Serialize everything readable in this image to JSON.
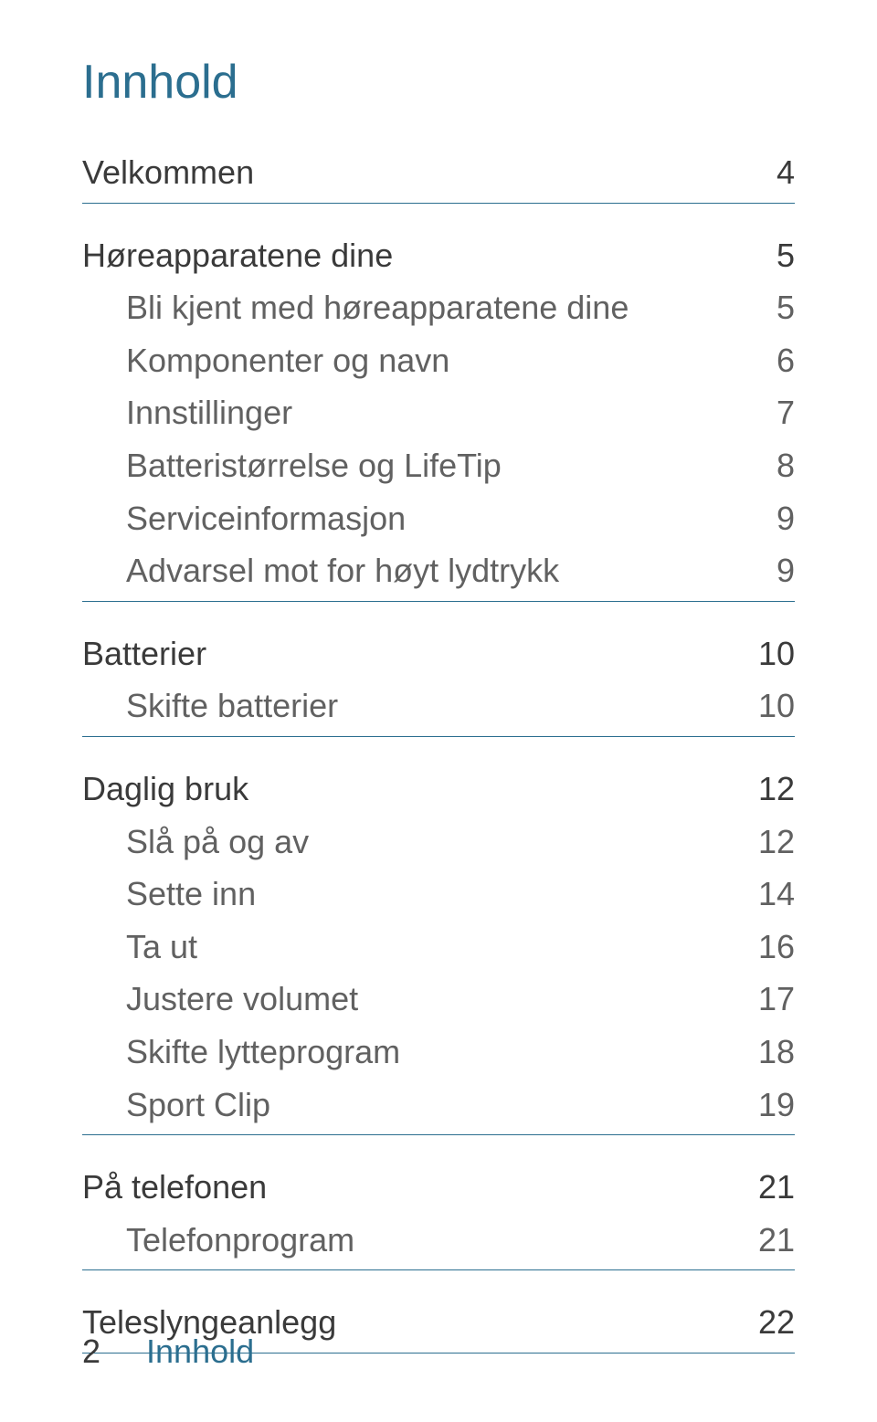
{
  "colors": {
    "heading": "#2b6e8f",
    "section_main": "#3a3a3a",
    "section_sub": "#616161",
    "rule": "#2b6e8f",
    "footer_num": "#3a3a3a",
    "footer_label": "#2b6e8f"
  },
  "title": "Innhold",
  "toc": [
    {
      "label": "Velkommen",
      "page": "4",
      "items": []
    },
    {
      "label": "Høreapparatene dine",
      "page": "5",
      "items": [
        {
          "label": "Bli kjent med høreapparatene dine",
          "page": "5"
        },
        {
          "label": "Komponenter og navn",
          "page": "6"
        },
        {
          "label": "Innstillinger",
          "page": "7"
        },
        {
          "label": "Batteristørrelse og LifeTip",
          "page": "8"
        },
        {
          "label": "Serviceinformasjon",
          "page": "9"
        },
        {
          "label": "Advarsel mot for høyt lydtrykk",
          "page": "9"
        }
      ]
    },
    {
      "label": "Batterier",
      "page": "10",
      "items": [
        {
          "label": "Skifte batterier",
          "page": "10"
        }
      ]
    },
    {
      "label": "Daglig bruk",
      "page": "12",
      "items": [
        {
          "label": "Slå på og av",
          "page": "12"
        },
        {
          "label": "Sette inn",
          "page": "14"
        },
        {
          "label": "Ta ut",
          "page": "16"
        },
        {
          "label": "Justere volumet",
          "page": "17"
        },
        {
          "label": "Skifte lytteprogram",
          "page": "18"
        },
        {
          "label": "Sport Clip",
          "page": "19"
        }
      ]
    },
    {
      "label": "På telefonen",
      "page": "21",
      "items": [
        {
          "label": "Telefonprogram",
          "page": "21"
        }
      ]
    },
    {
      "label": "Teleslyngeanlegg",
      "page": "22",
      "items": []
    }
  ],
  "footer": {
    "page_num": "2",
    "label": "Innhold"
  }
}
